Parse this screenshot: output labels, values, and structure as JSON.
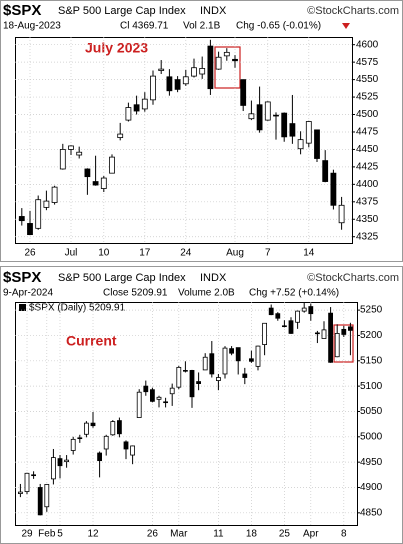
{
  "chart_data": [
    {
      "type": "candlestick",
      "title": "$SPX",
      "subtitle": "S&P 500 Large Cap Index",
      "exchange": "INDX",
      "source": "©StockCharts.com",
      "date": "18-Aug-2023",
      "stats": [
        "Cl 4369.71",
        "Vol 2.1B",
        "Chg -0.65 (-0.01%)"
      ],
      "annotation": "July 2023",
      "categories": [
        null,
        "26",
        null,
        null,
        null,
        null,
        "Jul",
        null,
        null,
        null,
        "10",
        null,
        null,
        null,
        null,
        "17",
        null,
        null,
        null,
        null,
        "24",
        null,
        null,
        null,
        null,
        null,
        "Aug",
        null,
        null,
        null,
        "7",
        null,
        null,
        null,
        null,
        "14",
        null,
        null,
        null,
        null
      ],
      "open": [
        4354,
        4344,
        4337,
        4367,
        4374,
        4422,
        4450,
        4442,
        4422,
        4404,
        4394,
        4416,
        4467,
        4492,
        4514,
        4508,
        4521,
        4563,
        4554,
        4550,
        4544,
        4555,
        4558,
        4598,
        4565,
        4584,
        4579,
        4550,
        4494,
        4514,
        4492,
        4498,
        4502,
        4487,
        4451,
        4459,
        4478,
        4434,
        4416,
        4345
      ],
      "high": [
        4366,
        4362,
        4384,
        4391,
        4398,
        4458,
        4456,
        4454,
        4423,
        4441,
        4412,
        4443,
        4488,
        4517,
        4527,
        4532,
        4563,
        4578,
        4565,
        4555,
        4564,
        4580,
        4583,
        4607,
        4590,
        4595,
        4585,
        4550,
        4520,
        4540,
        4519,
        4503,
        4503,
        4528,
        4476,
        4491,
        4478,
        4449,
        4421,
        4382
      ],
      "low": [
        4341,
        4328,
        4335,
        4363,
        4371,
        4421,
        4442,
        4437,
        4385,
        4398,
        4389,
        4416,
        4463,
        4490,
        4500,
        4504,
        4514,
        4558,
        4527,
        4532,
        4541,
        4553,
        4551,
        4528,
        4564,
        4577,
        4567,
        4505,
        4492,
        4474,
        4491,
        4464,
        4461,
        4458,
        4443,
        4453,
        4432,
        4403,
        4364,
        4335
      ],
      "close": [
        4348,
        4328,
        4378,
        4376,
        4396,
        4450,
        4455,
        4446,
        4411,
        4399,
        4409,
        4439,
        4472,
        4510,
        4505,
        4522,
        4555,
        4565,
        4534,
        4536,
        4554,
        4567,
        4566,
        4537,
        4582,
        4589,
        4577,
        4513,
        4501,
        4478,
        4518,
        4499,
        4468,
        4469,
        4464,
        4490,
        4437,
        4404,
        4370,
        4370
      ],
      "ylim": [
        4316,
        4611
      ],
      "yticks": [
        4325,
        4350,
        4375,
        4400,
        4425,
        4450,
        4475,
        4500,
        4525,
        4550,
        4575,
        4600
      ],
      "grid": true,
      "up_color": "#ffffff",
      "down_color": "#000000"
    },
    {
      "type": "candlestick",
      "title": "$SPX",
      "subtitle": "S&P 500 Large Cap Index",
      "exchange": "INDX",
      "source": "©StockCharts.com",
      "date": "9-Apr-2024",
      "stats": [
        "Close 5209.91",
        "Volume 2.0B",
        "Chg +7.52 (+0.14%)"
      ],
      "legend": "$SPX (Daily) 5209.91",
      "annotation": "Current",
      "categories": [
        null,
        "29",
        null,
        null,
        "Feb",
        null,
        "5",
        null,
        null,
        null,
        null,
        "12",
        null,
        null,
        null,
        null,
        null,
        null,
        null,
        null,
        "26",
        null,
        null,
        null,
        "Mar",
        null,
        null,
        null,
        null,
        null,
        "11",
        null,
        null,
        null,
        null,
        "18",
        null,
        null,
        null,
        null,
        "25",
        null,
        null,
        null,
        "Apr",
        null,
        null,
        null,
        null,
        "8",
        null
      ],
      "open": [
        4888,
        4892,
        4925,
        4900,
        4862,
        4917,
        4957,
        4951,
        4973,
        4997,
        5005,
        5027,
        4968,
        4976,
        5004,
        5032,
        4990,
        4964,
        5038,
        5100,
        5093,
        5074,
        5068,
        5085,
        5098,
        5131,
        5131,
        5109,
        5132,
        5164,
        5111,
        5124,
        5174,
        5176,
        5124,
        5154,
        5139,
        5182,
        5254,
        5243,
        5219,
        5229,
        5226,
        5248,
        5257,
        5204,
        5194,
        5244,
        5158,
        5212,
        5217
      ],
      "high": [
        4907,
        4929,
        4932,
        4907,
        4907,
        4976,
        4964,
        4964,
        5000,
        5004,
        5031,
        5049,
        4971,
        5004,
        5033,
        5038,
        4993,
        4983,
        5094,
        5111,
        5097,
        5081,
        5077,
        5105,
        5140,
        5149,
        5132,
        5127,
        5165,
        5189,
        5124,
        5179,
        5179,
        5176,
        5136,
        5170,
        5180,
        5224,
        5261,
        5246,
        5230,
        5236,
        5249,
        5264,
        5263,
        5209,
        5228,
        5256,
        5222,
        5219,
        5225
      ],
      "low": [
        4881,
        4887,
        4917,
        4845,
        4852,
        4906,
        4918,
        4939,
        4965,
        4988,
        4999,
        5018,
        4920,
        4963,
        5002,
        4999,
        4956,
        4946,
        5038,
        5081,
        5068,
        5058,
        5058,
        5061,
        5094,
        5127,
        5057,
        5092,
        5132,
        5117,
        5092,
        5115,
        5161,
        5123,
        5104,
        5146,
        5131,
        5161,
        5240,
        5229,
        5216,
        5203,
        5213,
        5245,
        5229,
        5185,
        5194,
        5146,
        5157,
        5197,
        5161
      ],
      "close": [
        4891,
        4928,
        4925,
        4846,
        4906,
        4959,
        4943,
        4954,
        4995,
        4998,
        5027,
        5022,
        4953,
        5001,
        5030,
        5006,
        4976,
        4982,
        5088,
        5089,
        5070,
        5078,
        5069,
        5096,
        5137,
        5131,
        5079,
        5105,
        5157,
        5124,
        5117,
        5175,
        5165,
        5150,
        5117,
        5149,
        5179,
        5224,
        5241,
        5234,
        5218,
        5204,
        5248,
        5254,
        5243,
        5205,
        5211,
        5147,
        5204,
        5202,
        5210
      ],
      "ylim": [
        4826,
        5266
      ],
      "yticks": [
        4850,
        4900,
        4950,
        5000,
        5050,
        5100,
        5150,
        5200,
        5250
      ],
      "grid": true,
      "up_color": "#ffffff",
      "down_color": "#000000"
    }
  ]
}
